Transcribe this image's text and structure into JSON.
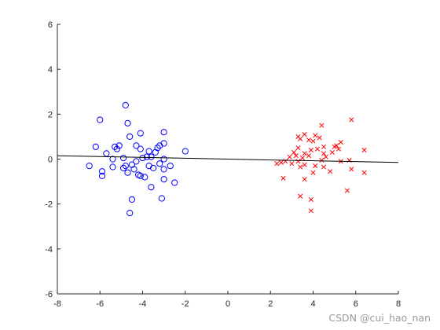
{
  "watermark": "CSDN @cui_hao_nan",
  "chart_data": {
    "type": "scatter",
    "title": "",
    "xlabel": "",
    "ylabel": "",
    "xlim": [
      -8,
      8
    ],
    "ylim": [
      -6,
      6
    ],
    "xticks": [
      -8,
      -6,
      -4,
      -2,
      0,
      2,
      4,
      6,
      8
    ],
    "yticks": [
      -6,
      -4,
      -2,
      0,
      2,
      4,
      6
    ],
    "xtick_labels": [
      "-8",
      "-6",
      "-4",
      "-2",
      "0",
      "2",
      "4",
      "6",
      "8"
    ],
    "ytick_labels": [
      "-6",
      "-4",
      "-2",
      "0",
      "2",
      "4",
      "6"
    ],
    "grid": false,
    "series": [
      {
        "marker": "circle",
        "color": "#0000ff",
        "points": [
          [
            -4.8,
            2.4
          ],
          [
            -6.0,
            1.75
          ],
          [
            -4.7,
            1.6
          ],
          [
            -4.1,
            1.15
          ],
          [
            -3.0,
            1.2
          ],
          [
            -4.6,
            1.0
          ],
          [
            -3.0,
            0.7
          ],
          [
            -6.2,
            0.55
          ],
          [
            -5.3,
            0.55
          ],
          [
            -5.1,
            0.6
          ],
          [
            -5.2,
            0.45
          ],
          [
            -4.3,
            0.6
          ],
          [
            -4.1,
            0.45
          ],
          [
            -3.7,
            0.35
          ],
          [
            -3.3,
            0.5
          ],
          [
            -3.2,
            0.6
          ],
          [
            -2.0,
            0.35
          ],
          [
            -5.7,
            0.25
          ],
          [
            -3.4,
            0.3
          ],
          [
            -3.6,
            0.1
          ],
          [
            -5.4,
            0.0
          ],
          [
            -4.9,
            0.05
          ],
          [
            -4.0,
            0.05
          ],
          [
            -3.8,
            0.1
          ],
          [
            -3.0,
            0.0
          ],
          [
            -4.3,
            -0.1
          ],
          [
            -4.5,
            -0.25
          ],
          [
            -4.8,
            -0.3
          ],
          [
            -5.4,
            -0.35
          ],
          [
            -4.9,
            -0.4
          ],
          [
            -3.7,
            -0.3
          ],
          [
            -3.5,
            -0.4
          ],
          [
            -3.2,
            -0.2
          ],
          [
            -2.7,
            -0.3
          ],
          [
            -6.5,
            -0.3
          ],
          [
            -4.4,
            -0.45
          ],
          [
            -4.2,
            -0.7
          ],
          [
            -3.9,
            -0.8
          ],
          [
            -4.7,
            -0.6
          ],
          [
            -5.9,
            -0.55
          ],
          [
            -5.9,
            -0.75
          ],
          [
            -4.1,
            -0.75
          ],
          [
            -3.0,
            -0.45
          ],
          [
            -3.0,
            -0.9
          ],
          [
            -2.5,
            -1.05
          ],
          [
            -3.6,
            -1.25
          ],
          [
            -4.5,
            -1.8
          ],
          [
            -3.1,
            -1.75
          ],
          [
            -4.6,
            -2.4
          ]
        ]
      },
      {
        "marker": "x",
        "color": "#ff0000",
        "points": [
          [
            5.8,
            1.75
          ],
          [
            4.4,
            1.5
          ],
          [
            3.6,
            1.1
          ],
          [
            4.1,
            1.05
          ],
          [
            3.3,
            1.0
          ],
          [
            3.4,
            0.9
          ],
          [
            3.8,
            0.85
          ],
          [
            4.3,
            0.95
          ],
          [
            4.0,
            0.8
          ],
          [
            5.3,
            0.75
          ],
          [
            5.1,
            0.6
          ],
          [
            5.0,
            0.55
          ],
          [
            5.2,
            0.45
          ],
          [
            3.3,
            0.5
          ],
          [
            4.2,
            0.45
          ],
          [
            4.5,
            0.55
          ],
          [
            3.9,
            0.4
          ],
          [
            6.4,
            0.4
          ],
          [
            3.1,
            0.3
          ],
          [
            3.6,
            0.25
          ],
          [
            4.5,
            0.25
          ],
          [
            4.9,
            0.3
          ],
          [
            3.2,
            0.15
          ],
          [
            2.9,
            0.1
          ],
          [
            3.8,
            0.15
          ],
          [
            4.6,
            0.1
          ],
          [
            3.5,
            0.05
          ],
          [
            4.4,
            -0.05
          ],
          [
            2.7,
            -0.1
          ],
          [
            3.3,
            -0.1
          ],
          [
            5.3,
            -0.1
          ],
          [
            5.7,
            -0.05
          ],
          [
            2.3,
            -0.2
          ],
          [
            2.5,
            -0.15
          ],
          [
            3.0,
            -0.2
          ],
          [
            3.6,
            -0.25
          ],
          [
            4.1,
            -0.3
          ],
          [
            4.5,
            -0.35
          ],
          [
            3.4,
            -0.35
          ],
          [
            5.8,
            -0.45
          ],
          [
            6.4,
            -0.6
          ],
          [
            4.8,
            -0.55
          ],
          [
            4.0,
            -0.6
          ],
          [
            2.6,
            -0.85
          ],
          [
            3.6,
            -0.9
          ],
          [
            5.6,
            -1.4
          ],
          [
            3.4,
            -1.65
          ],
          [
            3.9,
            -1.8
          ],
          [
            3.9,
            -2.3
          ]
        ]
      },
      {
        "marker": "line",
        "color": "#000000",
        "points": [
          [
            -8,
            0.15
          ],
          [
            8,
            -0.15
          ]
        ]
      }
    ]
  }
}
